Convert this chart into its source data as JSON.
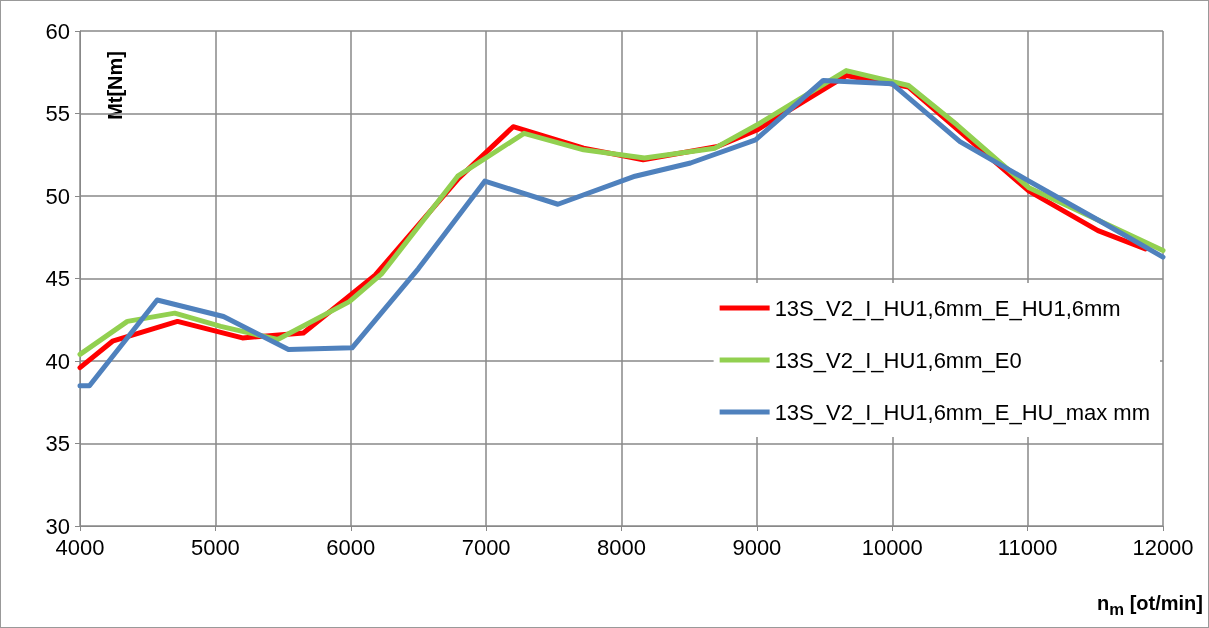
{
  "chart_data": {
    "type": "line",
    "xlabel": "n$_{m}$ [ot/min]",
    "ylabel": "Mt[Nm]",
    "xlim": [
      4000,
      12000
    ],
    "xticks": [
      4000,
      5000,
      6000,
      7000,
      8000,
      9000,
      10000,
      11000,
      12000
    ],
    "ylim": [
      30,
      60
    ],
    "yticks": [
      30,
      35,
      40,
      45,
      50,
      55,
      60
    ],
    "grid": true,
    "legend": "right",
    "marker": "none",
    "line_style": "solid",
    "series": [
      {
        "name": "13S_V2_I_HU1,6mm_E_HU1,6mm",
        "color": "#ff0000",
        "x": [
          4000,
          4240,
          4720,
          5200,
          5650,
          6180,
          6800,
          7200,
          7720,
          8160,
          8710,
          9000,
          9660,
          10120,
          11010,
          11520,
          11870
        ],
        "values": [
          39.6,
          41.2,
          42.4,
          41.4,
          41.7,
          45.2,
          51.1,
          54.2,
          52.9,
          52.2,
          53.0,
          54.0,
          57.3,
          56.6,
          50.3,
          47.9,
          46.8
        ]
      },
      {
        "name": "13S_V2_I_HU1,6mm_E0",
        "color": "#92d050",
        "x": [
          4000,
          4350,
          4700,
          5040,
          5460,
          5990,
          6230,
          6790,
          7280,
          7720,
          8170,
          8690,
          9000,
          9660,
          10120,
          10480,
          11010,
          12000
        ],
        "values": [
          40.4,
          42.4,
          42.9,
          42.1,
          41.3,
          43.6,
          45.3,
          51.2,
          53.8,
          52.8,
          52.3,
          52.9,
          54.3,
          57.6,
          56.7,
          54.3,
          50.5,
          46.7
        ]
      },
      {
        "name": "13S_V2_I_HU1,6mm_E_HU_max mm",
        "color": "#4f81bd",
        "x": [
          4000,
          4070,
          4570,
          5060,
          5540,
          6010,
          6500,
          6990,
          7530,
          8100,
          8510,
          8990,
          9490,
          10000,
          10500,
          11010,
          11530,
          12000
        ],
        "values": [
          38.5,
          38.5,
          43.7,
          42.7,
          40.7,
          40.8,
          45.6,
          50.9,
          49.5,
          51.2,
          52.0,
          53.4,
          57.0,
          56.8,
          53.3,
          50.9,
          48.5,
          46.3
        ]
      }
    ]
  }
}
